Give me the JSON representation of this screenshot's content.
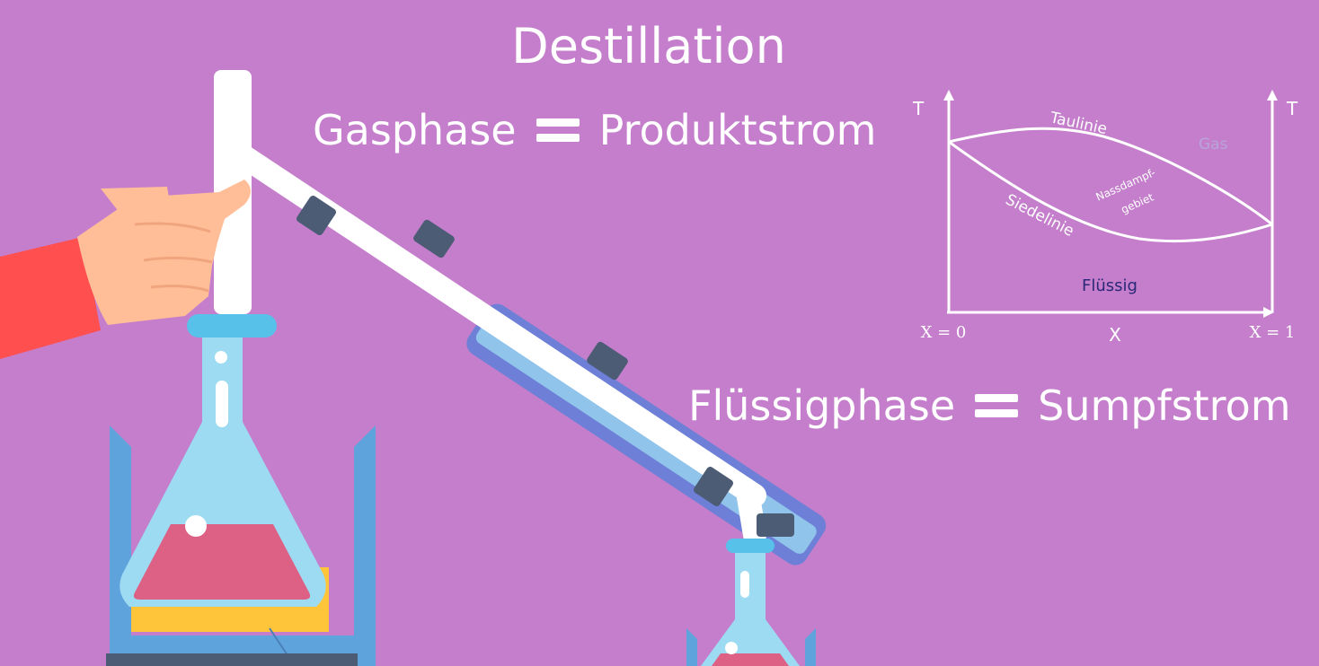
{
  "title": "Destillation",
  "equation_gas": {
    "left": "Gasphase",
    "right": "Produktstrom"
  },
  "equation_liquid": {
    "left": "Flüssigphase",
    "right": "Sumpfstrom"
  },
  "phase_diagram": {
    "axis_left_label": "T",
    "axis_right_label": "T",
    "x_axis_label": "X",
    "x_left_label": "X = 0",
    "x_right_label": "X = 1",
    "dew_line_label": "Taulinie",
    "boiling_line_label": "Siedelinie",
    "wet_steam_label_line1": "Nassdampf-",
    "wet_steam_label_line2": "gebiet",
    "gas_region_label": "Gas",
    "liquid_region_label": "Flüssig"
  },
  "colors": {
    "background": "#c47ecc",
    "sleeve": "#ff4f4f",
    "skin": "#ffbe98",
    "glass": "#9ddbf2",
    "liquid": "#dd6085",
    "condenser": "#6d7fd6",
    "clamp": "#4c5c74",
    "heater": "#5fa3dd",
    "heat_plate": "#ffc53a",
    "gas_label": "#b8a4d8",
    "liquid_label": "#2a2877"
  }
}
